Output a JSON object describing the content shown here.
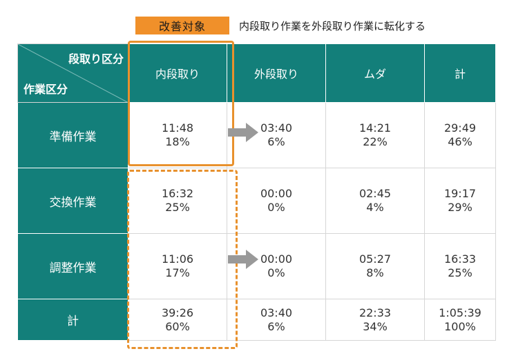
{
  "banner": {
    "label": "改善対象",
    "description": "内段取り作業を外段取り作業に転化する"
  },
  "table": {
    "corner_top": "段取り区分",
    "corner_bottom": "作業区分",
    "columns": [
      "内段取り",
      "外段取り",
      "ムダ",
      "計"
    ],
    "rows": [
      {
        "label": "準備作業",
        "cells": [
          {
            "time": "11:48",
            "pct": "18%"
          },
          {
            "time": "03:40",
            "pct": "6%"
          },
          {
            "time": "14:21",
            "pct": "22%"
          },
          {
            "time": "29:49",
            "pct": "46%"
          }
        ]
      },
      {
        "label": "交換作業",
        "cells": [
          {
            "time": "16:32",
            "pct": "25%"
          },
          {
            "time": "00:00",
            "pct": "0%"
          },
          {
            "time": "02:45",
            "pct": "4%"
          },
          {
            "time": "19:17",
            "pct": "29%"
          }
        ]
      },
      {
        "label": "調整作業",
        "cells": [
          {
            "time": "11:06",
            "pct": "17%"
          },
          {
            "time": "00:00",
            "pct": "0%"
          },
          {
            "time": "05:27",
            "pct": "8%"
          },
          {
            "time": "16:33",
            "pct": "25%"
          }
        ]
      },
      {
        "label": "計",
        "cells": [
          {
            "time": "39:26",
            "pct": "60%"
          },
          {
            "time": "03:40",
            "pct": "6%"
          },
          {
            "time": "22:33",
            "pct": "34%"
          },
          {
            "time": "1:05:39",
            "pct": "100%"
          }
        ]
      }
    ]
  },
  "colors": {
    "header_teal": "#137f7a",
    "accent_orange": "#f0902a",
    "arrow_gray": "#999999"
  }
}
